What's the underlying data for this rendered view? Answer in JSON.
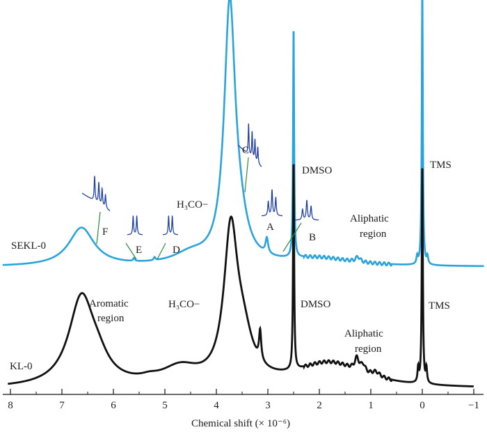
{
  "chart_data": {
    "type": "line",
    "title": "",
    "xlabel": "Chemical shift (× 10⁻⁶)",
    "ylabel": "",
    "xlim": [
      8.15,
      -1.25
    ],
    "x_reversed": true,
    "x_ticks": [
      8,
      7,
      6,
      5,
      4,
      3,
      2,
      1,
      0,
      -1
    ],
    "x_tick_labels": [
      "8",
      "7",
      "6",
      "5",
      "4",
      "3",
      "2",
      "1",
      "0",
      "−1"
    ],
    "y_units": "arbitrary intensity",
    "grid": false,
    "legend": "none",
    "colors": {
      "kl": "#111111",
      "sekl": "#29a3dc",
      "inset": "#1f3fa8",
      "pointer": "#2e8b3a"
    },
    "series": [
      {
        "name": "KL-0",
        "label": "KL-0",
        "baseline": 0,
        "peaks": [
          {
            "x": 6.62,
            "h": 0.36,
            "w": 0.3
          },
          {
            "x": 6.3,
            "h": 0.06,
            "w": 0.25
          },
          {
            "x": 5.3,
            "h": 0.012,
            "w": 0.2
          },
          {
            "x": 4.7,
            "h": 0.07,
            "w": 0.45
          },
          {
            "x": 3.72,
            "h": 0.6,
            "w": 0.16
          },
          {
            "x": 3.48,
            "h": 0.16,
            "w": 0.22
          },
          {
            "x": 3.15,
            "h": 0.12,
            "w": 0.025
          },
          {
            "x": 2.5,
            "h": 0.86,
            "w": 0.012
          },
          {
            "x": 1.8,
            "h": 0.1,
            "w": 0.8
          },
          {
            "x": 1.27,
            "h": 0.05,
            "w": 0.05
          },
          {
            "x": 1.15,
            "h": 0.03,
            "w": 0.05
          },
          {
            "x": 0.9,
            "h": 0.02,
            "w": 0.1
          },
          {
            "x": 0.08,
            "h": 0.06,
            "w": 0.015
          },
          {
            "x": 0.0,
            "h": 0.9,
            "w": 0.012
          },
          {
            "x": -0.08,
            "h": 0.06,
            "w": 0.015
          }
        ]
      },
      {
        "name": "SEKL-0",
        "label": "SEKL-0",
        "baseline": 1,
        "peaks": [
          {
            "x": 6.62,
            "h": 0.15,
            "w": 0.3
          },
          {
            "x": 5.6,
            "h": 0.012,
            "w": 0.02
          },
          {
            "x": 5.2,
            "h": 0.012,
            "w": 0.02
          },
          {
            "x": 4.5,
            "h": 0.04,
            "w": 0.4
          },
          {
            "x": 3.74,
            "h": 1.0,
            "w": 0.13
          },
          {
            "x": 3.55,
            "h": 0.1,
            "w": 0.18
          },
          {
            "x": 3.02,
            "h": 0.06,
            "w": 0.03
          },
          {
            "x": 2.5,
            "h": 0.91,
            "w": 0.012
          },
          {
            "x": 2.0,
            "h": 0.03,
            "w": 0.8
          },
          {
            "x": 1.25,
            "h": 0.02,
            "w": 0.05
          },
          {
            "x": 0.0,
            "h": 1.12,
            "w": 0.012
          },
          {
            "x": 0.1,
            "h": 0.03,
            "w": 0.015
          },
          {
            "x": -0.1,
            "h": 0.03,
            "w": 0.015
          }
        ]
      }
    ],
    "annotations": {
      "sekl": {
        "h3co": "H₃CO−",
        "dmso": "DMSO",
        "tms": "TMS",
        "aliphatic_line1": "Aliphatic",
        "aliphatic_line2": "region"
      },
      "kl": {
        "aromatic_line1": "Aromatic",
        "aromatic_line2": "region",
        "h3co": "H₃CO−",
        "dmso": "DMSO",
        "tms": "TMS",
        "aliphatic_line1": "Aliphatic",
        "aliphatic_line2": "region"
      },
      "insets": [
        {
          "letter": "F",
          "kind": "multiplet-slope",
          "target_x": 6.3
        },
        {
          "letter": "E",
          "kind": "doublet",
          "target_x": 5.6
        },
        {
          "letter": "D",
          "kind": "doublet",
          "target_x": 5.2
        },
        {
          "letter": "C",
          "kind": "multiplet-slope",
          "target_x": 3.55
        },
        {
          "letter": "A",
          "kind": "triplet",
          "target_x": 3.02
        },
        {
          "letter": "B",
          "kind": "triplet",
          "target_x": 2.6
        }
      ]
    }
  }
}
